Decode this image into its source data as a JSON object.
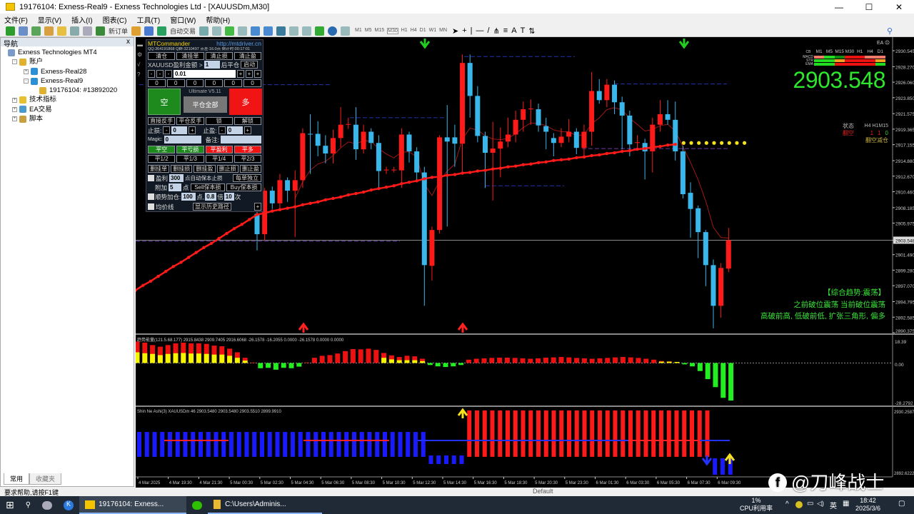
{
  "window": {
    "title": "19176104: Exness-Real9 - Exness Technologies Ltd - [XAUUSDm,M30]",
    "min": "—",
    "max": "☐",
    "close": "✕"
  },
  "menu": [
    "文件(F)",
    "显示(V)",
    "插入(I)",
    "图表(C)",
    "工具(T)",
    "窗口(W)",
    "帮助(H)"
  ],
  "toolbar": {
    "new_order": "新订单",
    "auto_trading": "自动交易",
    "timeframes": [
      "M1",
      "M5",
      "M15",
      "M30",
      "H1",
      "H4",
      "D1",
      "W1",
      "MN"
    ],
    "active_timeframe": "M30",
    "text_tool": "A"
  },
  "navigator": {
    "title": "导航",
    "close": "x",
    "items": [
      {
        "label": "Exness Technologies MT4",
        "icon": "terminal-icon"
      },
      {
        "label": "账户",
        "icon": "accounts-icon"
      },
      {
        "label": "Exness-Real28",
        "icon": "server-icon"
      },
      {
        "label": "Exness-Real9",
        "icon": "server-icon"
      },
      {
        "label": "19176104: #13892020",
        "icon": "account-user-icon"
      },
      {
        "label": "技术指标",
        "icon": "indicators-icon"
      },
      {
        "label": "EA交易",
        "icon": "expert-advisors-icon"
      },
      {
        "label": "脚本",
        "icon": "scripts-icon"
      }
    ],
    "tabs": [
      "常用",
      "收藏夹"
    ]
  },
  "commander": {
    "title": "MTCommander",
    "url": "http://mtdriver.cn",
    "info": "QQ:364191868 Q群:3210497 点差:16.0点 倒计时:00:17:01",
    "row1": [
      "清仓",
      "清挂单",
      "清止损",
      "清止盈"
    ],
    "profit_label": "XAUUSD盈利金额 >",
    "profit_value": "1",
    "after_close": "后平仓",
    "start": "启动",
    "minus": "-",
    "plus": "+",
    "lot": "0.01",
    "zeros": [
      "0",
      "0",
      "0",
      "0",
      "0",
      "0"
    ],
    "sell": "空",
    "buy": "多",
    "version": "Ultimate V5.11",
    "close_all": "平仓全部",
    "row_reverse": [
      "直接反手",
      "平仓反手",
      "锁",
      "解锁"
    ],
    "sl_label": "止损:",
    "sl_value": "0",
    "tp_label": "止盈:",
    "tp_value": "0",
    "magic_label": "Magic:",
    "magic_value": "0",
    "note_label": "备注:",
    "note_value": "",
    "row_close": [
      "平空",
      "平亏损",
      "平盈利",
      "平多"
    ],
    "row_partial": [
      "平1/2",
      "平1/3",
      "平1/4",
      "平2/3"
    ],
    "row_delete": [
      "删挂单",
      "删挂损",
      "删挂盈",
      "删止损",
      "删止盈"
    ],
    "be_label": "盈利",
    "be_value": "300",
    "be_text": "点自动保本止损",
    "be_mode": "每单独立",
    "add_label": "附加",
    "add_value": "5",
    "add_unit": "点",
    "sell_be": "Sell保本损",
    "buy_be": "Buy保本损",
    "pyramid_label": "顺势加仓:",
    "pyramid_points": "100",
    "pyramid_unit": "点,",
    "pyramid_mult": "0.8",
    "pyramid_mult_unit": "倍",
    "pyramid_times": "10",
    "pyramid_times_unit": "次",
    "avg_line": "均价线",
    "history": "显示历史路径",
    "expand": "+"
  },
  "ea_label": "EA ☹",
  "mtf": {
    "header": "CB",
    "timeframes": [
      "M1",
      "M5",
      "M15",
      "M30",
      "H1",
      "H4",
      "D1"
    ],
    "rows": [
      {
        "label": "MACD",
        "colors": [
          "#f07a6a",
          "#22dd22",
          "#118a11",
          "#ee1111",
          "#ee1111",
          "#f07a6a",
          "#f07a6a"
        ]
      },
      {
        "label": "STR",
        "colors": [
          "#22dd22",
          "#22dd22",
          "#f5a020",
          "#ee1111",
          "#ee1111",
          "#ee1111",
          "#f5a020"
        ]
      },
      {
        "label": "EMA",
        "colors": [
          "#22dd22",
          "#22dd22",
          "#ee1111",
          "#ee1111",
          "#ee1111",
          "#ee1111",
          "#22dd22"
        ]
      }
    ]
  },
  "big_price": "2903.548",
  "state_panel": {
    "label": "状态",
    "tfs": "H4  H1M15",
    "state": "翻空",
    "values": [
      "1",
      "1",
      "0"
    ],
    "action": "翻空减仓"
  },
  "analysis": [
    "【综合趋势:震荡】",
    "之前破位震荡  当前破位震荡",
    "高破前高, 低破前低, 扩张三角形, 偏多"
  ],
  "chart_data": [
    {
      "type": "candlestick",
      "symbol": "XAUUSDm",
      "timeframe": "M30",
      "y_ticks": [
        "2930.545",
        "2928.270",
        "2926.060",
        "2923.850",
        "2921.575",
        "2919.365",
        "2917.155",
        "2914.880",
        "2912.670",
        "2910.460",
        "2908.185",
        "2905.975",
        "2903.548",
        "2901.490",
        "2899.280",
        "2897.070",
        "2894.795",
        "2892.585",
        "2890.375"
      ],
      "ylim": [
        2890.375,
        2930.545
      ],
      "current_price": 2903.548,
      "colors": {
        "up": "#ff1a1a",
        "down": "#39b6ea",
        "background": "#000000"
      },
      "candles_ohlc": [
        null,
        null,
        null,
        null,
        null,
        null,
        null,
        null,
        null,
        null,
        null,
        null,
        null,
        null,
        null,
        null,
        [
          2907.3,
          2908.0,
          2902.1,
          2904.4
        ],
        [
          2904.4,
          2911.0,
          2903.5,
          2910.6
        ],
        [
          2910.6,
          2911.2,
          2908.0,
          2908.8
        ],
        [
          2908.8,
          2913.0,
          2908.0,
          2912.1
        ],
        [
          2912.1,
          2912.5,
          2909.0,
          2910.6
        ],
        [
          2910.6,
          2913.5,
          2904.0,
          2912.1
        ],
        [
          2912.1,
          2919.5,
          2911.0,
          2918.8
        ],
        [
          2918.7,
          2921.5,
          2913.0,
          2918.6
        ],
        [
          2918.7,
          2920.5,
          2915.5,
          2917.0
        ],
        [
          2917.0,
          2918.5,
          2914.5,
          2915.9
        ],
        [
          2915.9,
          2919.3,
          2914.5,
          2918.1
        ],
        [
          2918.1,
          2922.5,
          2916.8,
          2920.0
        ],
        [
          2920.0,
          2921.0,
          2919.4,
          2920.1
        ],
        [
          2920.0,
          2922.5,
          2915.0,
          2916.5
        ],
        [
          2916.5,
          2920.0,
          2915.9,
          2919.0
        ],
        [
          2919.0,
          2919.5,
          2916.5,
          2917.4
        ],
        [
          2917.4,
          2918.5,
          2911.0,
          2913.4
        ],
        [
          2913.5,
          2914.0,
          2913.0,
          2913.6
        ],
        [
          2913.5,
          2914.0,
          2913.2,
          2913.6
        ],
        [
          2913.5,
          2919.5,
          2911.0,
          2918.6
        ],
        [
          2918.6,
          2919.0,
          2914.6,
          2916.2
        ],
        [
          2916.2,
          2916.8,
          2912.0,
          2913.2
        ],
        [
          2913.2,
          2914.0,
          2894.2,
          2900.0
        ],
        [
          2899.9,
          2905.5,
          2897.8,
          2905.0
        ],
        [
          2905.0,
          2918.5,
          2904.5,
          2918.2
        ],
        [
          2918.2,
          2922.8,
          2905.5,
          2917.6
        ],
        [
          2918.2,
          2920.0,
          2914.0,
          2917.3
        ],
        [
          2917.3,
          2930.0,
          2913.0,
          2928.8
        ],
        [
          2928.8,
          2930.0,
          2921.0,
          2924.1
        ],
        [
          2924.1,
          2925.5,
          2917.5,
          2918.4
        ],
        [
          2918.4,
          2919.0,
          2911.0,
          2916.0
        ],
        [
          2916.0,
          2920.4,
          2909.2,
          2916.6
        ],
        [
          2916.6,
          2919.6,
          2912.5,
          2917.6
        ],
        [
          2917.6,
          2921.0,
          2916.8,
          2918.6
        ],
        [
          2918.6,
          2922.0,
          2917.5,
          2920.7
        ],
        [
          2920.7,
          2923.3,
          2919.0,
          2922.2
        ],
        [
          2922.2,
          2923.6,
          2920.0,
          2922.3
        ],
        [
          2922.2,
          2923.0,
          2919.0,
          2919.9
        ],
        [
          2919.8,
          2921.0,
          2916.5,
          2919.0
        ],
        [
          2918.1,
          2918.8,
          2915.5,
          2917.4
        ],
        [
          2917.4,
          2919.5,
          2916.8,
          2918.3
        ],
        [
          2918.3,
          2920.8,
          2917.5,
          2919.0
        ],
        [
          2919.0,
          2919.5,
          2915.8,
          2916.7
        ],
        [
          2916.7,
          2920.0,
          2915.5,
          2919.0
        ],
        [
          2919.0,
          2927.5,
          2917.0,
          2924.8
        ],
        [
          2924.8,
          2926.5,
          2923.0,
          2923.5
        ],
        [
          2923.5,
          2926.5,
          2922.5,
          2925.7
        ],
        [
          2925.7,
          2926.3,
          2921.5,
          2923.2
        ],
        [
          2923.2,
          2924.0,
          2916.5,
          2921.3
        ],
        [
          2921.3,
          2922.0,
          2915.5,
          2917.2
        ],
        [
          2917.4,
          2918.5,
          2916.5,
          2917.5
        ],
        [
          2917.4,
          2918.0,
          2912.2,
          2916.2
        ],
        [
          2916.2,
          2921.0,
          2913.2,
          2920.0
        ],
        [
          2920.0,
          2923.5,
          2919.0,
          2921.5
        ],
        [
          2921.5,
          2923.5,
          2920.0,
          2920.7
        ],
        [
          2920.7,
          2923.3,
          2914.9,
          2916.2
        ],
        [
          2916.2,
          2917.0,
          2909.5,
          2910.1
        ],
        [
          2910.3,
          2911.8,
          2903.9,
          2908.0
        ],
        [
          2908.1,
          2908.5,
          2901.0,
          2904.7
        ],
        [
          2904.7,
          2905.0,
          2897.0,
          2900.0
        ],
        [
          2900.0,
          2900.8,
          2891.0,
          2894.2
        ],
        [
          2894.2,
          2900.3,
          2892.5,
          2899.6
        ],
        [
          2899.5,
          2905.3,
          2899.0,
          2903.548
        ]
      ],
      "trend_dots_red": [
        2896.4,
        2897.1,
        2897.7,
        2898.4,
        2899.1,
        2899.8,
        2900.4,
        2901.1,
        2901.8,
        2902.5,
        2903.1,
        2903.8,
        2904.5,
        2905.2,
        2905.8,
        2906.5,
        2907.2,
        2907.4,
        2907.7,
        2907.9,
        2908.1,
        2908.3,
        2908.6,
        2908.8,
        2909.0,
        2909.3,
        2909.5,
        2909.7,
        2910.0,
        2910.2,
        2910.4,
        2910.7,
        2910.9,
        2911.1,
        2911.3,
        2911.6,
        2911.8,
        2912.0,
        2912.3,
        2912.5,
        2912.6,
        2912.8,
        2912.9,
        2913.1,
        2913.2,
        2913.4,
        2913.5,
        2913.7,
        2913.8,
        2914.0,
        2914.1,
        2914.3,
        2914.4,
        2914.6,
        2914.7,
        2914.9,
        2915.0,
        2915.1,
        2915.3,
        2915.4,
        2915.6,
        2915.7,
        2915.9,
        2916.0,
        2916.2,
        2916.3,
        2916.5,
        2916.6,
        2916.8,
        2916.9,
        2917.1,
        2917.2
      ],
      "trend_dots_yellow": [
        2917.4,
        2917.4,
        2917.4,
        2917.4,
        2917.4,
        2917.4,
        2917.4,
        2917.4,
        2917.4
      ],
      "levels": [
        {
          "price": 2929.7,
          "color": "#2233aa"
        },
        {
          "price": 2925.7,
          "color": "#2233aa"
        },
        {
          "price": 2925.8,
          "color": "#2233aa"
        },
        {
          "price": 2921.0,
          "color": "#2233aa"
        },
        {
          "price": 2911.3,
          "color": "#2233aa"
        },
        {
          "price": 2903.4,
          "color": "#6a3aa8"
        },
        {
          "price": 2916.6,
          "color": "#6a3aa8"
        }
      ],
      "signals": [
        {
          "dir": "down",
          "color": "#22cc22"
        },
        {
          "dir": "down",
          "color": "#22cc22"
        },
        {
          "dir": "up",
          "color": "#ff2222"
        },
        {
          "dir": "up",
          "color": "#ff2222"
        }
      ]
    },
    {
      "type": "bar",
      "title": "趋势能量(121.5.68.177) 2915.8438 2909.7405 2916.6068 -26.1578 -16.2055 0.0000 -26.1578 0.0000 0.0000",
      "y_ticks": [
        "18.39",
        "0.00",
        "-28.2792"
      ],
      "ylim": [
        -28.2792,
        18.39
      ],
      "values": [
        16,
        15.2,
        13.4,
        12.2,
        13.4,
        14.7,
        15.2,
        14.7,
        14.7,
        14.3,
        13,
        12.5,
        10.7,
        8,
        3.9,
        0.4,
        -3.9,
        -3.6,
        -5,
        -3.6,
        -3.9,
        -2.7,
        0.4,
        3.9,
        5.4,
        5.9,
        7.1,
        8.9,
        10.4,
        10.2,
        10.7,
        9.8,
        7.5,
        5.7,
        4.5,
        5.4,
        5,
        3.2,
        -1.5,
        -2.5,
        -3,
        -2.5,
        -1.5,
        2.5,
        3.2,
        3.5,
        3.8,
        4,
        4,
        3.8,
        3.5,
        3.2,
        3.5,
        4,
        4.2,
        4.5,
        4.2,
        3.8,
        3.5,
        3.2,
        3.5,
        3.8,
        4.2,
        4.5,
        4.2,
        3.8,
        3.2,
        2.5,
        1.5,
        1.2,
        0.8,
        -1,
        -2.5,
        -6,
        -12,
        -18,
        -26,
        -28
      ],
      "yellow_values": [
        8,
        7.3,
        6.8,
        5.9,
        6.8,
        7.3,
        7.5,
        7.1,
        7.1,
        6.8,
        6.3,
        6.3,
        5.4,
        3.9,
        1.8,
        0,
        0,
        0,
        0,
        0,
        0,
        0,
        0,
        0,
        0,
        0,
        0,
        0,
        0,
        0,
        0,
        0,
        3.9,
        2.7,
        2.1,
        2.1,
        2.1,
        1.4,
        0,
        0,
        0,
        0,
        0,
        0,
        0,
        0,
        0,
        0,
        0,
        0,
        0,
        0,
        0,
        0,
        0,
        0,
        0,
        0,
        0,
        0,
        0,
        0,
        0,
        0,
        0,
        0,
        0,
        0,
        1,
        1,
        0.8,
        0,
        0,
        0,
        0,
        0,
        0,
        0
      ],
      "colors": {
        "positive": "#ee1111",
        "yellow": "#f5f500",
        "negative": "#22ee22"
      }
    },
    {
      "type": "bar",
      "title": "Shin Ne Ashi(3) XAUUSDm 46 2903.5480 2903.5480 2903.5510 2899.9910",
      "y_ticks": [
        "2930.2587",
        "2892.6222"
      ],
      "ylim": [
        2892.6222,
        2930.2587
      ],
      "groups": [
        {
          "color": "#1a1aff",
          "count": 38,
          "hi": 2917.4,
          "lo": 2902.5
        },
        {
          "color": "#1a1aff",
          "count": 5,
          "hi": 2903.3,
          "lo": 2898.2
        },
        {
          "color": "#ff1a1a",
          "count": 32,
          "hi": 2930.3,
          "lo": 2902.5
        },
        {
          "color": "#1a1aff",
          "count": 3,
          "hi": 2901.6,
          "lo": 2891.8
        }
      ]
    }
  ],
  "time_axis": [
    "4 Mar 2025",
    "4 Mar 19:30",
    "4 Mar 21:30",
    "5 Mar 00:30",
    "5 Mar 02:30",
    "5 Mar 04:30",
    "5 Mar 06:30",
    "5 Mar 08:30",
    "5 Mar 10:30",
    "5 Mar 12:30",
    "5 Mar 14:30",
    "5 Mar 16:30",
    "5 Mar 18:30",
    "5 Mar 20:30",
    "5 Mar 23:30",
    "6 Mar 01:30",
    "6 Mar 03:30",
    "6 Mar 05:30",
    "6 Mar 07:30",
    "6 Mar 09:30"
  ],
  "statusbar": {
    "help": "要求帮助,请按F1键",
    "profile": "Default"
  },
  "watermark": "@刀峰战士",
  "taskbar": {
    "mt4": "19176104: Exness...",
    "explorer": "C:\\Users\\Adminis...",
    "cpu_pct": "1%",
    "cpu_label": "CPU利用率",
    "ime": "英",
    "time": "18:42",
    "date": "2025/3/6"
  }
}
